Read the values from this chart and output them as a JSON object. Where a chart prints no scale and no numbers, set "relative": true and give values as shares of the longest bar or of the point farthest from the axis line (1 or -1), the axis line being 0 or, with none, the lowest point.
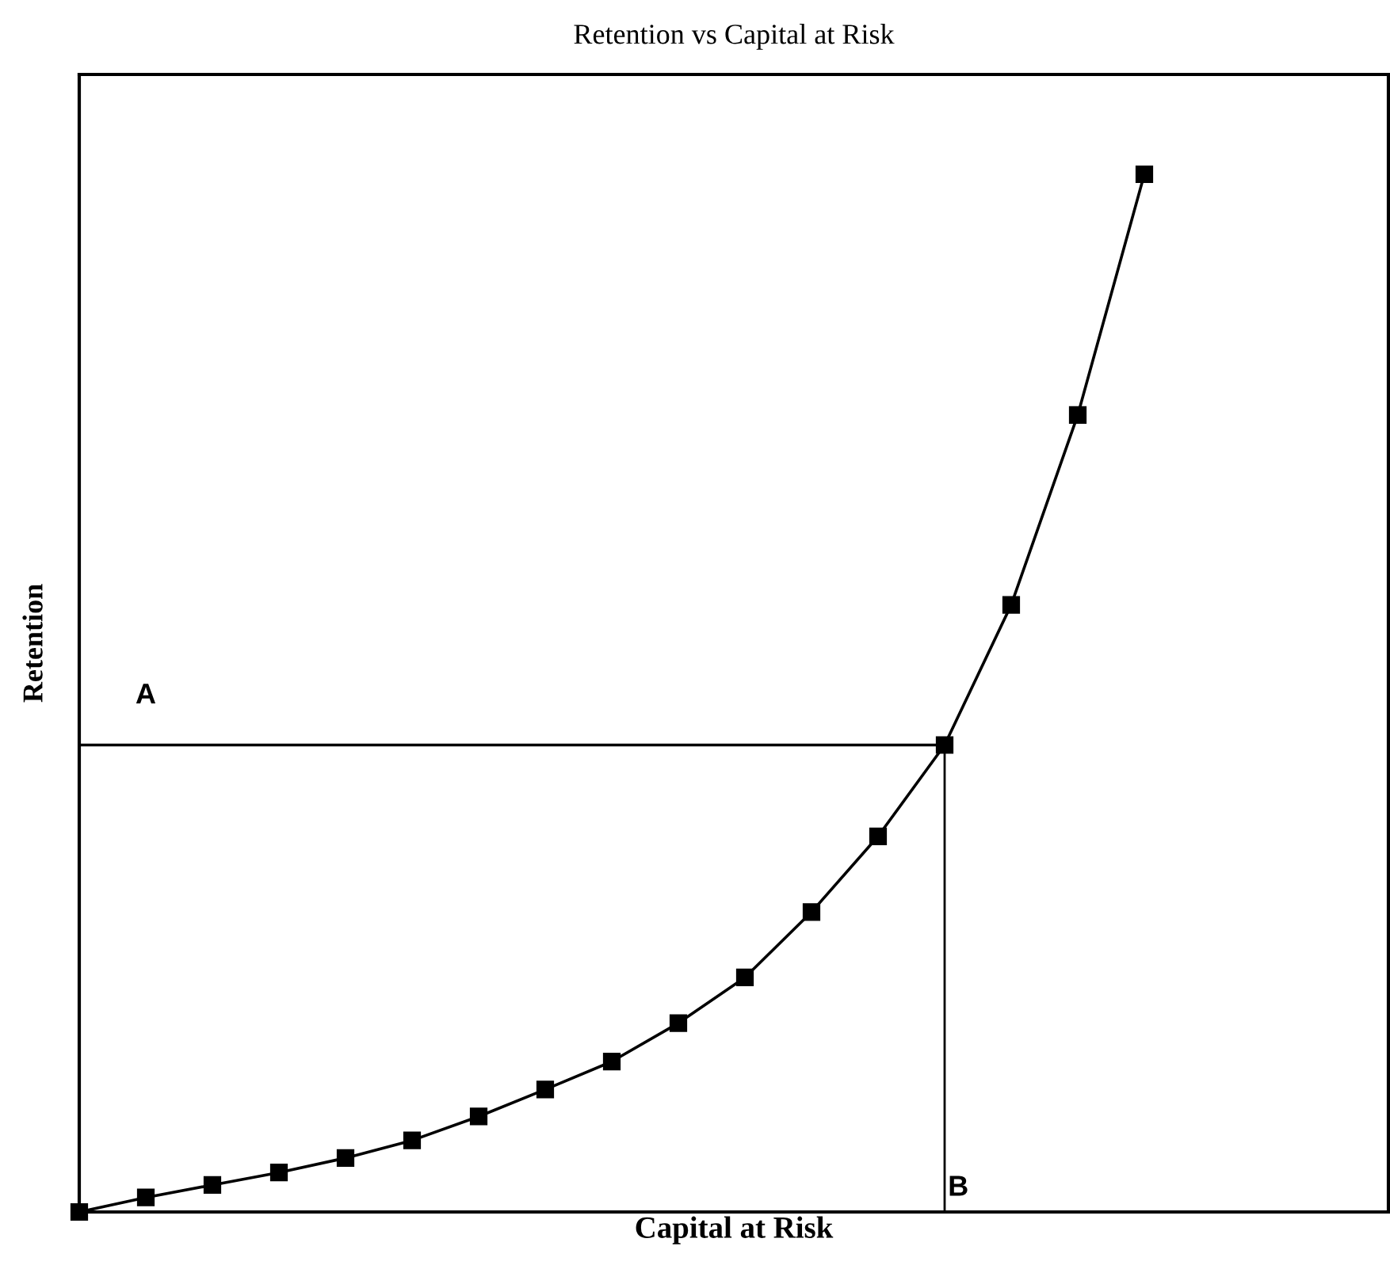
{
  "chart_data": {
    "type": "line",
    "title": "Retention vs Capital at Risk",
    "xlabel": "Capital at Risk",
    "ylabel": "Retention",
    "categories": [
      null,
      null,
      null,
      null,
      null,
      null,
      null,
      null,
      null,
      null,
      null,
      null,
      null,
      null,
      null,
      null,
      null
    ],
    "relative": true,
    "marker": "square",
    "line_style": "solid",
    "grid": false,
    "legend": false,
    "tick_labels": false,
    "series": [
      {
        "color": "#000000",
        "values": [
          0,
          0.014,
          0.026,
          0.038,
          0.052,
          0.069,
          0.092,
          0.118,
          0.145,
          0.182,
          0.226,
          0.289,
          0.362,
          0.45,
          0.585,
          0.768,
          1
        ]
      }
    ],
    "ref_lines": [
      {
        "axis": "y",
        "value": 0.45,
        "label": "A",
        "color": "#000000"
      }
    ],
    "annotations": [
      "B"
    ]
  }
}
